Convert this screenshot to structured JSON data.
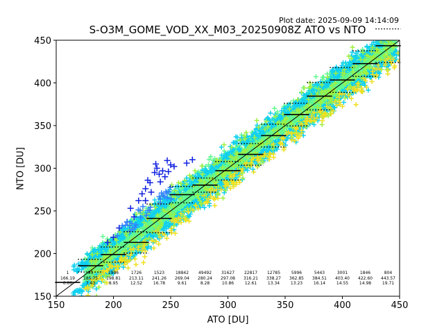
{
  "header": {
    "plot_date": "Plot date: 2025-09-09 14:14:09",
    "title": "S-O3M_GOME_VOD_XX_M03_20250908Z ATO vs NTO"
  },
  "chart_data": {
    "type": "scatter",
    "title": "S-O3M_GOME_VOD_XX_M03_20250908Z ATO vs NTO",
    "xlabel": "ATO [DU]",
    "ylabel": "NTO [DU]",
    "xlim": [
      150,
      450
    ],
    "ylim": [
      150,
      450
    ],
    "xticks": [
      150,
      200,
      250,
      300,
      350,
      400,
      450
    ],
    "yticks": [
      150,
      200,
      250,
      300,
      350,
      400,
      450
    ],
    "grid": false,
    "reference_line": "y = x",
    "colors": {
      "dense": "#60f890",
      "mid": "#10d0f0",
      "lime": "#a0f040",
      "yellow": "#f0e020",
      "sparse": "#1020e0",
      "light_blue": "#3080ff"
    },
    "bins": [
      {
        "center": 160,
        "count": "1",
        "mean": "166.19",
        "std": "0.00",
        "mean_val": 166.19,
        "std_val": 0.0
      },
      {
        "center": 180,
        "count": "95",
        "mean": "185.75",
        "std": "7.43",
        "mean_val": 185.75,
        "std_val": 7.43
      },
      {
        "center": 200,
        "count": "1996",
        "mean": "198.81",
        "std": "8.95",
        "mean_val": 198.81,
        "std_val": 8.95
      },
      {
        "center": 220,
        "count": "1726",
        "mean": "213.11",
        "std": "12.52",
        "mean_val": 213.11,
        "std_val": 12.52
      },
      {
        "center": 240,
        "count": "1523",
        "mean": "241.26",
        "std": "16.78",
        "mean_val": 241.26,
        "std_val": 16.78
      },
      {
        "center": 260,
        "count": "18842",
        "mean": "269.04",
        "std": "9.61",
        "mean_val": 269.04,
        "std_val": 9.61
      },
      {
        "center": 280,
        "count": "49492",
        "mean": "280.24",
        "std": "8.28",
        "mean_val": 280.24,
        "std_val": 8.28
      },
      {
        "center": 300,
        "count": "31627",
        "mean": "297.08",
        "std": "10.86",
        "mean_val": 297.08,
        "std_val": 10.86
      },
      {
        "center": 320,
        "count": "22817",
        "mean": "316.21",
        "std": "12.61",
        "mean_val": 316.21,
        "std_val": 12.61
      },
      {
        "center": 340,
        "count": "12785",
        "mean": "338.27",
        "std": "13.34",
        "mean_val": 338.27,
        "std_val": 13.34
      },
      {
        "center": 360,
        "count": "5996",
        "mean": "362.85",
        "std": "13.23",
        "mean_val": 362.85,
        "std_val": 13.23
      },
      {
        "center": 380,
        "count": "5443",
        "mean": "384.51",
        "std": "16.14",
        "mean_val": 384.51,
        "std_val": 16.14
      },
      {
        "center": 400,
        "count": "3001",
        "mean": "403.40",
        "std": "14.55",
        "mean_val": 403.4,
        "std_val": 14.55
      },
      {
        "center": 420,
        "count": "1846",
        "mean": "422.60",
        "std": "14.98",
        "mean_val": 422.6,
        "std_val": 14.98
      },
      {
        "center": 440,
        "count": "804",
        "mean": "443.57",
        "std": "19.71",
        "mean_val": 443.57,
        "std_val": 19.71
      }
    ]
  }
}
